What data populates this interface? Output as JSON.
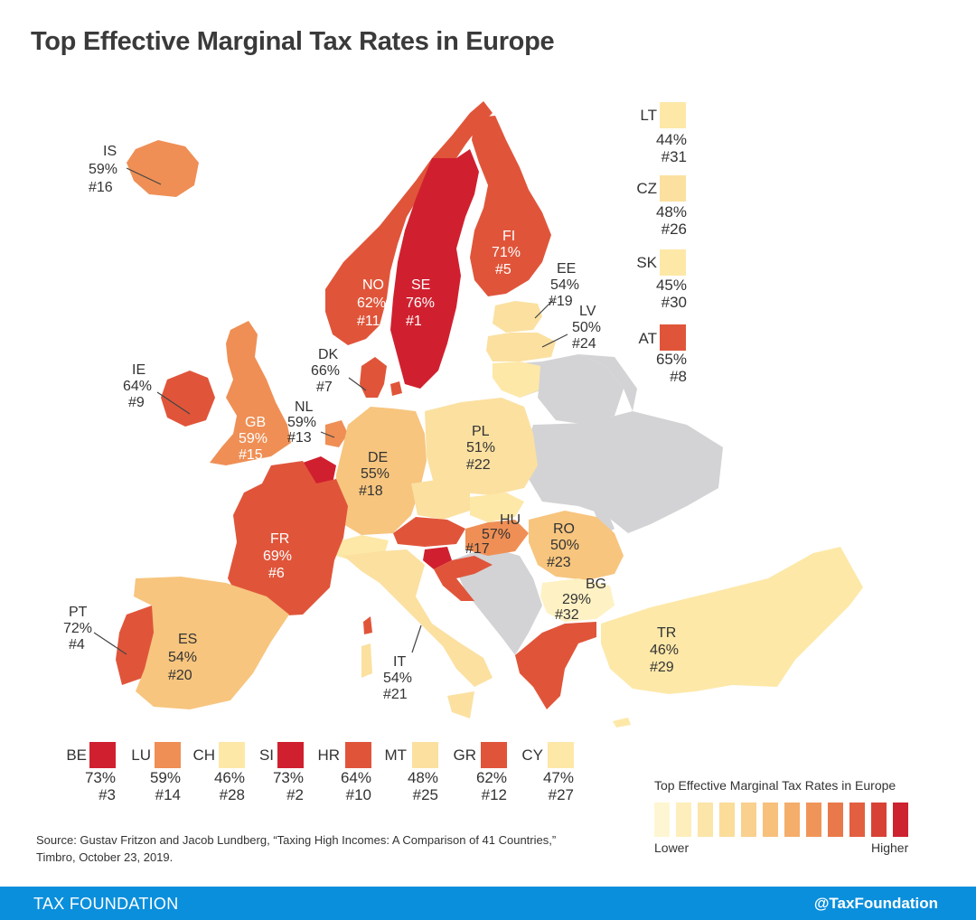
{
  "title": "Top Effective Marginal Tax Rates in Europe",
  "colors": {
    "red": "#d0202f",
    "red_orange": "#e0553a",
    "orange": "#ef8f55",
    "light_orange": "#f7c57e",
    "pale": "#fbe3a3",
    "no_data": "#d3d3d5"
  },
  "countries": {
    "is": {
      "code": "IS",
      "rate": "59%",
      "rank": "#16"
    },
    "no": {
      "code": "NO",
      "rate": "62%",
      "rank": "#11"
    },
    "se": {
      "code": "SE",
      "rate": "76%",
      "rank": "#1"
    },
    "fi": {
      "code": "FI",
      "rate": "71%",
      "rank": "#5"
    },
    "ee": {
      "code": "EE",
      "rate": "54%",
      "rank": "#19"
    },
    "lv": {
      "code": "LV",
      "rate": "50%",
      "rank": "#24"
    },
    "dk": {
      "code": "DK",
      "rate": "66%",
      "rank": "#7"
    },
    "ie": {
      "code": "IE",
      "rate": "64%",
      "rank": "#9"
    },
    "gb": {
      "code": "GB",
      "rate": "59%",
      "rank": "#15"
    },
    "nl": {
      "code": "NL",
      "rate": "59%",
      "rank": "#13"
    },
    "de": {
      "code": "DE",
      "rate": "55%",
      "rank": "#18"
    },
    "pl": {
      "code": "PL",
      "rate": "51%",
      "rank": "#22"
    },
    "fr": {
      "code": "FR",
      "rate": "69%",
      "rank": "#6"
    },
    "hu": {
      "code": "HU",
      "rate": "57%",
      "rank": "#17"
    },
    "ro": {
      "code": "RO",
      "rate": "50%",
      "rank": "#23"
    },
    "bg": {
      "code": "BG",
      "rate": "29%",
      "rank": "#32"
    },
    "pt": {
      "code": "PT",
      "rate": "72%",
      "rank": "#4"
    },
    "es": {
      "code": "ES",
      "rate": "54%",
      "rank": "#20"
    },
    "it": {
      "code": "IT",
      "rate": "54%",
      "rank": "#21"
    },
    "tr": {
      "code": "TR",
      "rate": "46%",
      "rank": "#29"
    }
  },
  "right_legend": [
    {
      "code": "LT",
      "rate": "44%",
      "rank": "#31",
      "color": "#fde8a8"
    },
    {
      "code": "CZ",
      "rate": "48%",
      "rank": "#26",
      "color": "#fbe0a0"
    },
    {
      "code": "SK",
      "rate": "45%",
      "rank": "#30",
      "color": "#fde8a8"
    },
    {
      "code": "AT",
      "rate": "65%",
      "rank": "#8",
      "color": "#e0553a"
    }
  ],
  "bottom_legend": [
    {
      "code": "BE",
      "rate": "73%",
      "rank": "#3",
      "color": "#d0202f"
    },
    {
      "code": "LU",
      "rate": "59%",
      "rank": "#14",
      "color": "#ef8f55"
    },
    {
      "code": "CH",
      "rate": "46%",
      "rank": "#28",
      "color": "#fde8a8"
    },
    {
      "code": "SI",
      "rate": "73%",
      "rank": "#2",
      "color": "#d0202f"
    },
    {
      "code": "HR",
      "rate": "64%",
      "rank": "#10",
      "color": "#e0553a"
    },
    {
      "code": "MT",
      "rate": "48%",
      "rank": "#25",
      "color": "#fbe0a0"
    },
    {
      "code": "GR",
      "rate": "62%",
      "rank": "#12",
      "color": "#e0553a"
    },
    {
      "code": "CY",
      "rate": "47%",
      "rank": "#27",
      "color": "#fde8a8"
    }
  ],
  "scale": {
    "title": "Top Effective Marginal Tax Rates in Europe",
    "low_label": "Lower",
    "high_label": "Higher",
    "colors": [
      "#fef6d2",
      "#fdeebb",
      "#fce5a8",
      "#fbdc99",
      "#f9d08d",
      "#f7c17c",
      "#f4ad6a",
      "#f0955a",
      "#e9794b",
      "#e25f40",
      "#d84236",
      "#cd2230"
    ]
  },
  "source": "Source: Gustav Fritzon and Jacob Lundberg, “Taxing High Incomes: A Comparison of 41 Countries,” Timbro, October 23, 2019.",
  "footer": {
    "left": "TAX FOUNDATION",
    "right": "@TaxFoundation"
  }
}
